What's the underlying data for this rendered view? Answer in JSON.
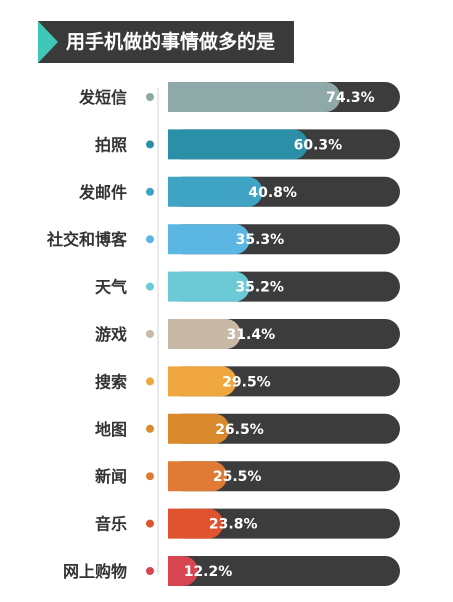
{
  "title": "用手机做的事情做多的是",
  "colors": {
    "track": "#3c3c3c",
    "title_bg": "#3a3a3a",
    "title_accent": "#3fc8b8",
    "axis_line": "#d6d6d6"
  },
  "chart_data": {
    "type": "bar",
    "orientation": "horizontal",
    "title": "用手机做的事情做多的是",
    "categories": [
      "发短信",
      "拍照",
      "发邮件",
      "社交和博客",
      "天气",
      "游戏",
      "搜索",
      "地图",
      "新闻",
      "音乐",
      "网上购物"
    ],
    "values": [
      74.3,
      60.3,
      40.8,
      35.3,
      35.2,
      31.4,
      29.5,
      26.5,
      25.5,
      23.8,
      12.2
    ],
    "value_labels": [
      "74.3%",
      "60.3%",
      "40.8%",
      "35.3%",
      "35.2%",
      "31.4%",
      "29.5%",
      "26.5%",
      "25.5%",
      "23.8%",
      "12.2%"
    ],
    "colors": [
      "#8fa9a8",
      "#2c8fa8",
      "#3fa3c4",
      "#5bb6e3",
      "#6cc9d6",
      "#c8b9a6",
      "#f0a63e",
      "#d88a2c",
      "#e07b35",
      "#e0532f",
      "#d64550"
    ],
    "xlim": [
      0,
      100
    ],
    "grid": false,
    "legend": "none"
  }
}
